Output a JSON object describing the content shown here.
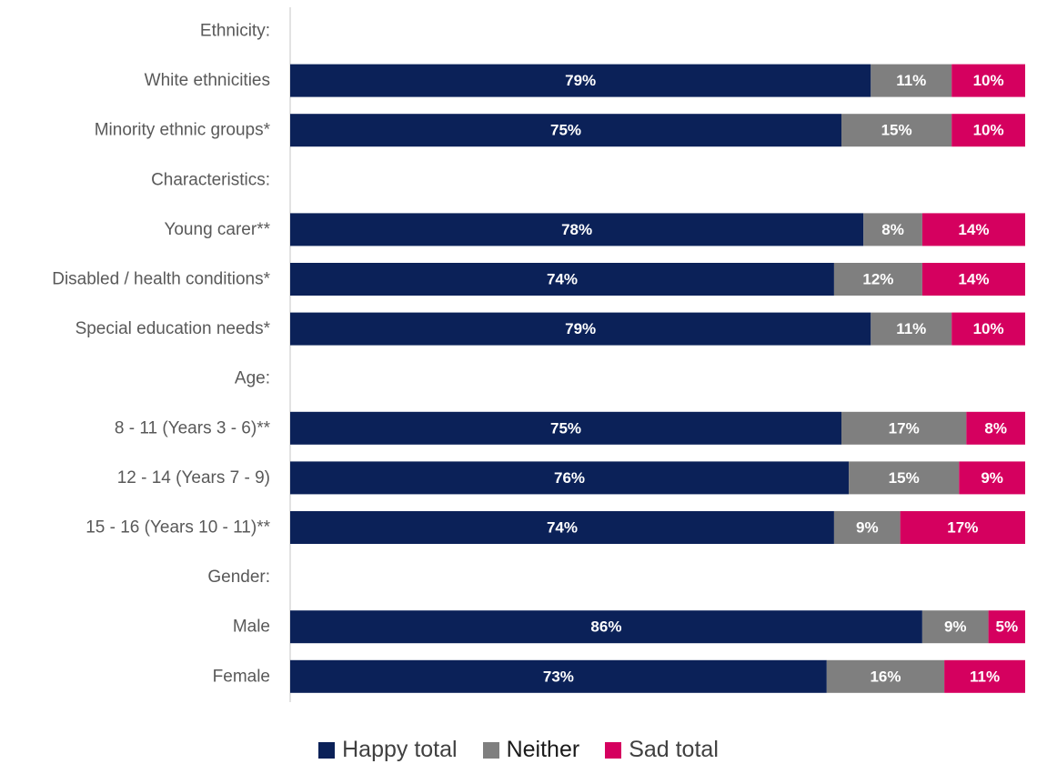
{
  "colors": {
    "happy": "#0b2158",
    "neither": "#7f7f7f",
    "sad": "#d5005f",
    "axis": "#d9d9d9"
  },
  "chart_data": {
    "type": "bar",
    "orientation": "horizontal",
    "stacked": true,
    "xlim": [
      0,
      100
    ],
    "grid": false,
    "legend_position": "bottom",
    "rows": [
      {
        "label": "Ethnicity:",
        "header": true
      },
      {
        "label": "White ethnicities",
        "values": [
          79,
          11,
          10
        ],
        "labels": [
          "79%",
          "11%",
          "10%"
        ]
      },
      {
        "label": "Minority ethnic groups*",
        "values": [
          75,
          15,
          10
        ],
        "labels": [
          "75%",
          "15%",
          "10%"
        ]
      },
      {
        "label": "Characteristics:",
        "header": true
      },
      {
        "label": "Young carer**",
        "values": [
          78,
          8,
          14
        ],
        "labels": [
          "78%",
          "8%",
          "14%"
        ]
      },
      {
        "label": "Disabled / health conditions*",
        "values": [
          74,
          12,
          14
        ],
        "labels": [
          "74%",
          "12%",
          "14%"
        ]
      },
      {
        "label": "Special education needs*",
        "values": [
          79,
          11,
          10
        ],
        "labels": [
          "79%",
          "11%",
          "10%"
        ]
      },
      {
        "label": "Age:",
        "header": true
      },
      {
        "label": "8 - 11 (Years 3 - 6)**",
        "values": [
          75,
          17,
          8
        ],
        "labels": [
          "75%",
          "17%",
          "8%"
        ]
      },
      {
        "label": "12 - 14 (Years 7 - 9)",
        "values": [
          76,
          15,
          9
        ],
        "labels": [
          "76%",
          "15%",
          "9%"
        ]
      },
      {
        "label": "15 - 16 (Years 10 - 11)**",
        "values": [
          74,
          9,
          17
        ],
        "labels": [
          "74%",
          "9%",
          "17%"
        ]
      },
      {
        "label": "Gender:",
        "header": true
      },
      {
        "label": "Male",
        "values": [
          86,
          9,
          5
        ],
        "labels": [
          "86%",
          "9%",
          "5%"
        ]
      },
      {
        "label": "Female",
        "values": [
          73,
          16,
          11
        ],
        "labels": [
          "73%",
          "16%",
          "11%"
        ]
      }
    ],
    "series": [
      {
        "name": "Happy total",
        "color": "#0b2158"
      },
      {
        "name": "Neither",
        "color": "#7f7f7f"
      },
      {
        "name": "Sad total",
        "color": "#d5005f"
      }
    ]
  }
}
